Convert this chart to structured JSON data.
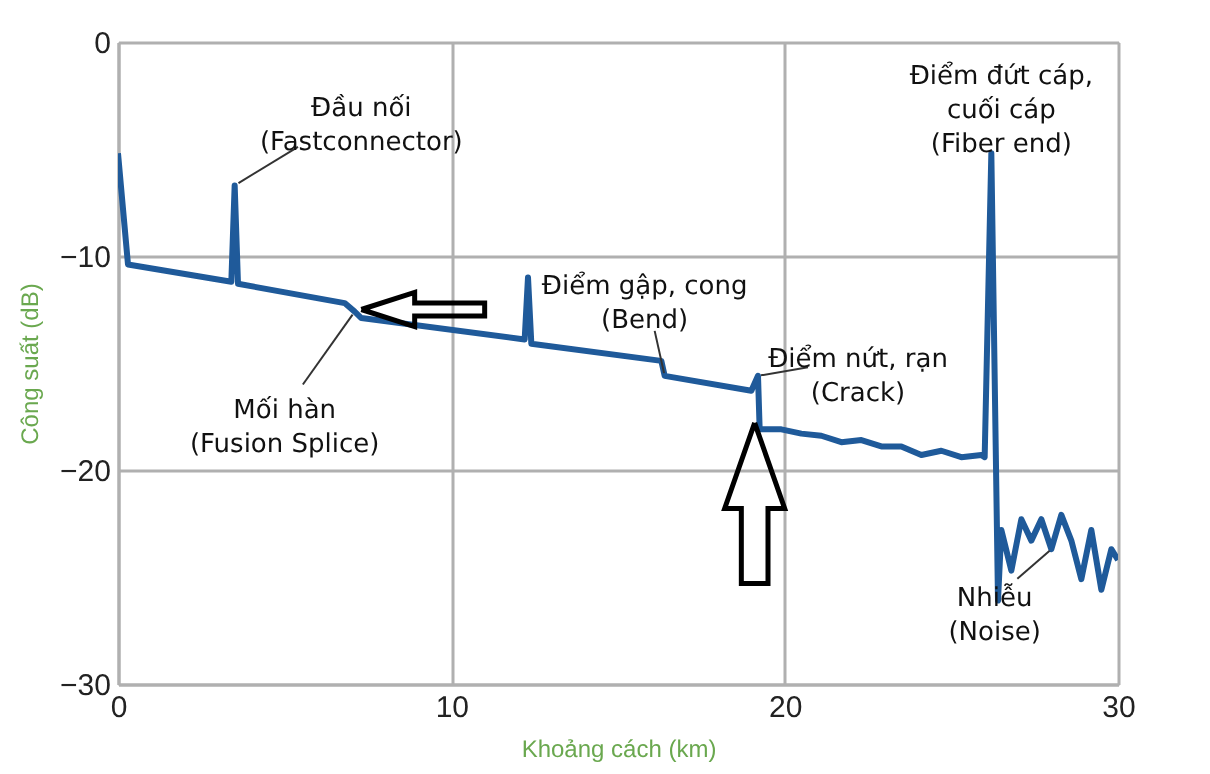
{
  "chart_data": {
    "type": "line",
    "xlabel": "Khoảng cách (km)",
    "ylabel": "Công suất (dB)",
    "xlim": [
      0,
      30
    ],
    "ylim": [
      -30,
      0
    ],
    "xticks": [
      0,
      10,
      20,
      30
    ],
    "yticks": [
      0,
      -10,
      -20,
      -30
    ],
    "grid": true,
    "marker": "none",
    "line_style": "solid",
    "x": [
      0,
      0.3,
      3.4,
      3.5,
      3.6,
      6.8,
      7.1,
      7.3,
      12.2,
      12.3,
      12.4,
      16.3,
      16.4,
      19.0,
      19.2,
      19.25,
      19.9,
      20.5,
      21.1,
      21.7,
      22.3,
      22.9,
      23.5,
      24.1,
      24.7,
      25.3,
      25.9,
      26.0,
      26.2,
      26.4,
      26.5,
      26.8,
      27.1,
      27.4,
      27.7,
      28.0,
      28.3,
      28.6,
      28.9,
      29.2,
      29.5,
      29.8,
      30
    ],
    "series": [
      {
        "color": "#1f5a9a",
        "values": [
          -5.2,
          -10.4,
          -11.2,
          -6.7,
          -11.3,
          -12.2,
          -12.6,
          -12.9,
          -13.9,
          -11.0,
          -14.1,
          -14.9,
          -15.6,
          -16.3,
          -15.6,
          -18.1,
          -18.1,
          -18.3,
          -18.4,
          -18.7,
          -18.6,
          -18.9,
          -18.9,
          -19.3,
          -19.1,
          -19.4,
          -19.3,
          -19.4,
          -5.2,
          -26.1,
          -22.8,
          -24.7,
          -22.3,
          -23.3,
          -22.3,
          -23.7,
          -22.1,
          -23.3,
          -25.1,
          -22.8,
          -25.6,
          -23.7,
          -24.2
        ]
      }
    ],
    "annotations": [
      {
        "text": "Đầu nối\n(Fastconnector)",
        "x": 3.5,
        "y": -6.7
      },
      {
        "text": "Mối hàn\n(Fusion Splice)",
        "x": 7.1,
        "y": -12.6
      },
      {
        "text": "Điểm gập, cong\n(Bend)",
        "x": 16.4,
        "y": -15.6
      },
      {
        "text": "Điểm nứt, rạn\n(Crack)",
        "x": 19.2,
        "y": -15.6
      },
      {
        "text": "Điểm đứt cáp,\ncuối cáp\n(Fiber end)",
        "x": 26.2,
        "y": -5.2
      },
      {
        "text": "Nhiễu\n(Noise)",
        "x": 28.0,
        "y": -23.7
      }
    ]
  }
}
